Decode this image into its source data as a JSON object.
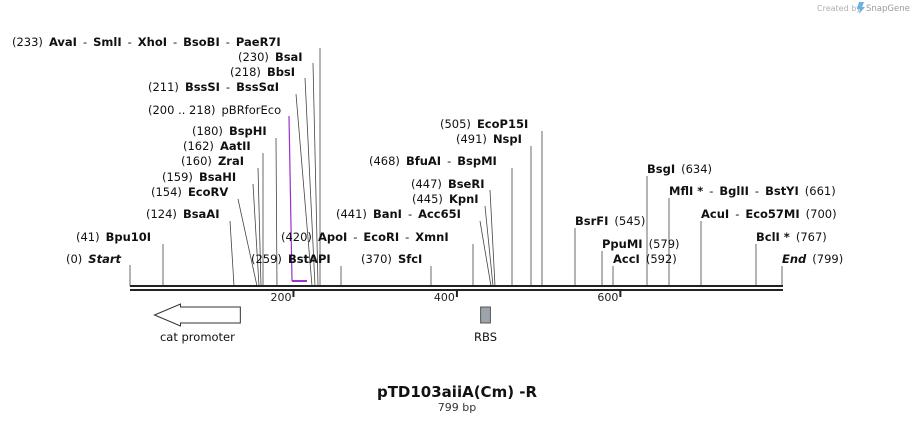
{
  "credit": {
    "text": "Created by",
    "brand": "SnapGene"
  },
  "plasmid": {
    "name": "pTD103aiiA(Cm) -R",
    "length_label": "799 bp",
    "length_bp": 799
  },
  "axis": {
    "ticks": [
      "200",
      "400",
      "600"
    ]
  },
  "labels": [
    {
      "id": "ava",
      "pos": "(233)",
      "names": [
        "AvaI",
        "SmlI",
        "XhoI",
        "BsoBI",
        "PaeR7I"
      ]
    },
    {
      "id": "bsa",
      "pos": "(230)",
      "names": [
        "BsaI"
      ]
    },
    {
      "id": "bbs",
      "pos": "(218)",
      "names": [
        "BbsI"
      ]
    },
    {
      "id": "bss",
      "pos": "(211)",
      "names": [
        "BssSI",
        "BssSαI"
      ]
    },
    {
      "id": "pbr",
      "pos": "(200 .. 218)",
      "names": [
        "pBRforEco"
      ]
    },
    {
      "id": "bsp",
      "pos": "(180)",
      "names": [
        "BspHI"
      ]
    },
    {
      "id": "aat",
      "pos": "(162)",
      "names": [
        "AatII"
      ]
    },
    {
      "id": "zra",
      "pos": "(160)",
      "names": [
        "ZraI"
      ]
    },
    {
      "id": "bsh",
      "pos": "(159)",
      "names": [
        "BsaHI"
      ]
    },
    {
      "id": "eco",
      "pos": "(154)",
      "names": [
        "EcoRV"
      ]
    },
    {
      "id": "baa",
      "pos": "(124)",
      "names": [
        "BsaAI"
      ]
    },
    {
      "id": "bpu",
      "pos": "(41)",
      "names": [
        "Bpu10I"
      ]
    },
    {
      "id": "start",
      "pos": "(0)",
      "names": [
        "Start"
      ]
    },
    {
      "id": "bst",
      "pos": "(259)",
      "names": [
        "BstAPI"
      ]
    },
    {
      "id": "apo",
      "pos": "(420)",
      "names": [
        "ApoI",
        "EcoRI",
        "XmnI"
      ]
    },
    {
      "id": "sfc",
      "pos": "(370)",
      "names": [
        "SfcI"
      ]
    },
    {
      "id": "ban",
      "pos": "(441)",
      "names": [
        "BanI",
        "Acc65I"
      ]
    },
    {
      "id": "kpn",
      "pos": "(445)",
      "names": [
        "KpnI"
      ]
    },
    {
      "id": "bse",
      "pos": "(447)",
      "names": [
        "BseRI"
      ]
    },
    {
      "id": "bfu",
      "pos": "(468)",
      "names": [
        "BfuAI",
        "BspMI"
      ]
    },
    {
      "id": "nsp",
      "pos": "(491)",
      "names": [
        "NspI"
      ]
    },
    {
      "id": "p15",
      "pos": "(505)",
      "names": [
        "EcoP15I"
      ]
    },
    {
      "id": "bsr",
      "pos": "(545)",
      "names": [
        "BsrFI"
      ]
    },
    {
      "id": "ppu",
      "pos": "(579)",
      "names": [
        "PpuMI"
      ]
    },
    {
      "id": "acc",
      "pos": "(592)",
      "names": [
        "AccI"
      ]
    },
    {
      "id": "bsg",
      "pos": "(634)",
      "names": [
        "BsgI"
      ]
    },
    {
      "id": "mfl",
      "pos": "(661)",
      "names": [
        "MflI *",
        "BglII",
        "BstYI"
      ]
    },
    {
      "id": "acu",
      "pos": "(700)",
      "names": [
        "AcuI",
        "Eco57MI"
      ]
    },
    {
      "id": "bcl",
      "pos": "(767)",
      "names": [
        "BclI *"
      ]
    },
    {
      "id": "end",
      "pos": "(799)",
      "names": [
        "End"
      ]
    }
  ],
  "features": [
    {
      "id": "cat",
      "name": "cat promoter",
      "start_bp": 30,
      "end_bp": 135,
      "direction": "left",
      "shape": "arrow"
    },
    {
      "id": "rbs",
      "name": "RBS",
      "start_bp": 429,
      "end_bp": 441,
      "shape": "box"
    }
  ],
  "colors": {
    "primer": "#9b30d0",
    "line": "#222222",
    "feature_fill": "#9ea4ab",
    "text": "#111111"
  }
}
